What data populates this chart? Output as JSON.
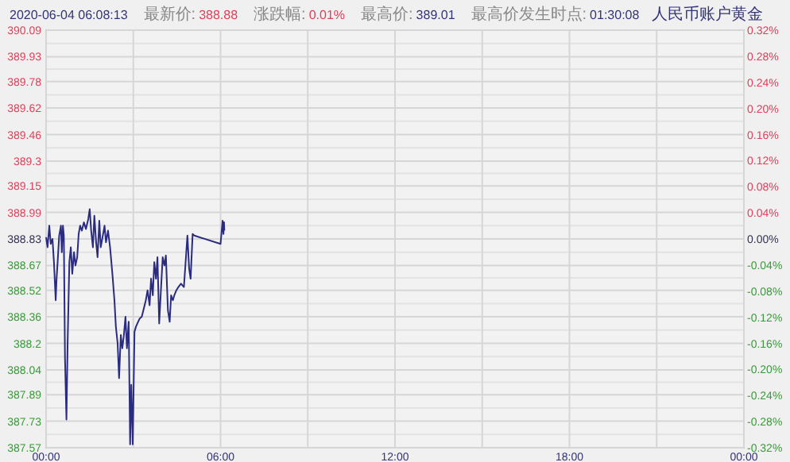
{
  "chart_data": {
    "type": "line",
    "annotations": [
      "2020-06-04 06:08:13",
      "最新价:",
      "388.88",
      "涨跌幅:",
      "0.01%",
      "最高价:",
      "389.01",
      "最高价发生时点:",
      "01:30:08",
      "人民币账户黄金"
    ],
    "xlim": [
      0,
      24
    ],
    "xticks": [
      {
        "value": 0,
        "label": "00:00"
      },
      {
        "value": 6,
        "label": "06:00"
      },
      {
        "value": 12,
        "label": "12:00"
      },
      {
        "value": 18,
        "label": "18:00"
      },
      {
        "value": 24,
        "label": "00:00"
      }
    ],
    "ylim": [
      387.57,
      390.09
    ],
    "yticks": [
      387.57,
      387.73,
      387.89,
      388.04,
      388.2,
      388.36,
      388.52,
      388.67,
      388.83,
      388.99,
      389.15,
      389.3,
      389.46,
      389.62,
      389.78,
      389.93,
      390.09
    ],
    "y2lim": [
      -0.32,
      0.32
    ],
    "y2ticks": [
      {
        "value": -0.32,
        "label": "-0.32%"
      },
      {
        "value": -0.28,
        "label": "-0.28%"
      },
      {
        "value": -0.24,
        "label": "-0.24%"
      },
      {
        "value": -0.2,
        "label": "-0.20%"
      },
      {
        "value": -0.16,
        "label": "-0.16%"
      },
      {
        "value": -0.12,
        "label": "-0.12%"
      },
      {
        "value": -0.08,
        "label": "-0.08%"
      },
      {
        "value": -0.04,
        "label": "-0.04%"
      },
      {
        "value": 0,
        "label": "0.00%"
      },
      {
        "value": 0.04,
        "label": "0.04%"
      },
      {
        "value": 0.08,
        "label": "0.08%"
      },
      {
        "value": 0.12,
        "label": "0.12%"
      },
      {
        "value": 0.16,
        "label": "0.16%"
      },
      {
        "value": 0.2,
        "label": "0.20%"
      },
      {
        "value": 0.24,
        "label": "0.24%"
      },
      {
        "value": 0.28,
        "label": "0.28%"
      },
      {
        "value": 0.32,
        "label": "0.32%"
      }
    ],
    "grid": true,
    "line_style": "solid",
    "series": [
      {
        "color": "#2b2b80",
        "x": [
          0,
          0.05,
          0.11,
          0.16,
          0.22,
          0.27,
          0.33,
          0.36,
          0.4,
          0.45,
          0.51,
          0.54,
          0.58,
          0.61,
          0.65,
          0.7,
          0.74,
          0.8,
          0.85,
          0.9,
          0.96,
          1.01,
          1.07,
          1.12,
          1.17,
          1.23,
          1.3,
          1.37,
          1.45,
          1.5,
          1.55,
          1.61,
          1.66,
          1.72,
          1.77,
          1.83,
          1.88,
          1.95,
          2.01,
          2.06,
          2.13,
          2.2,
          2.28,
          2.35,
          2.4,
          2.46,
          2.51,
          2.57,
          2.62,
          2.67,
          2.73,
          2.78,
          2.84,
          2.89,
          2.93,
          2.98,
          3.04,
          3.09,
          3.14,
          3.22,
          3.29,
          3.36,
          3.43,
          3.49,
          3.56,
          3.61,
          3.67,
          3.72,
          3.78,
          3.83,
          3.89,
          3.94,
          4.01,
          4.07,
          4.12,
          4.19,
          4.25,
          4.3,
          4.36,
          4.41,
          4.48,
          4.55,
          4.64,
          4.74,
          4.81,
          4.86,
          4.92,
          4.97,
          5.04,
          5.1,
          6.0,
          6.03,
          6.07,
          6.1,
          6.12,
          6.13
        ],
        "values": [
          388.84,
          388.78,
          388.91,
          388.8,
          388.83,
          388.69,
          388.46,
          388.59,
          388.7,
          388.85,
          388.91,
          388.75,
          388.91,
          388.85,
          388.11,
          387.74,
          388.2,
          388.69,
          388.78,
          388.62,
          388.75,
          388.67,
          388.72,
          388.86,
          388.91,
          388.88,
          388.93,
          388.89,
          388.95,
          389.01,
          388.88,
          388.78,
          388.97,
          388.81,
          388.72,
          388.94,
          388.78,
          388.85,
          388.91,
          388.81,
          388.88,
          388.78,
          388.62,
          388.46,
          388.3,
          388.2,
          387.99,
          388.25,
          388.17,
          388.24,
          388.36,
          388.17,
          388.33,
          387.59,
          387.95,
          387.59,
          388.27,
          388.3,
          388.32,
          388.35,
          388.36,
          388.41,
          388.46,
          388.52,
          388.43,
          388.59,
          388.49,
          388.69,
          388.59,
          388.72,
          388.32,
          388.49,
          388.72,
          388.67,
          388.73,
          388.4,
          388.33,
          388.49,
          388.46,
          388.49,
          388.52,
          388.54,
          388.56,
          388.54,
          388.72,
          388.85,
          388.65,
          388.59,
          388.86,
          388.85,
          388.8,
          388.86,
          388.94,
          388.86,
          388.93,
          388.88
        ]
      }
    ]
  }
}
